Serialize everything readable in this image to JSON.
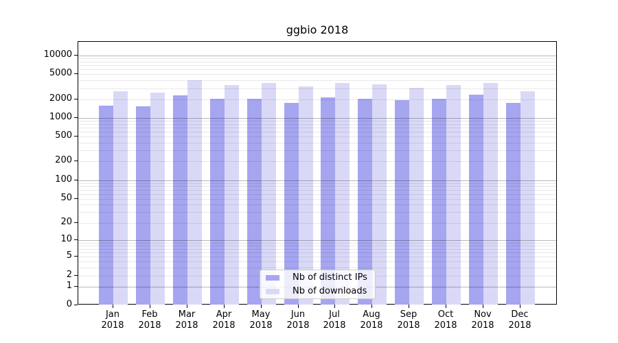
{
  "chart_data": {
    "type": "bar",
    "title": "ggbio 2018",
    "categories": [
      "Jan 2018",
      "Feb 2018",
      "Mar 2018",
      "Apr 2018",
      "May 2018",
      "Jun 2018",
      "Jul 2018",
      "Aug 2018",
      "Sep 2018",
      "Oct 2018",
      "Nov 2018",
      "Dec 2018"
    ],
    "x_tick_months": [
      "Jan",
      "Feb",
      "Mar",
      "Apr",
      "May",
      "Jun",
      "Jul",
      "Aug",
      "Sep",
      "Oct",
      "Nov",
      "Dec"
    ],
    "x_tick_year": "2018",
    "series": [
      {
        "name": "Nb of distinct IPs",
        "color": "#a5a5f0",
        "values": [
          1570,
          1530,
          2320,
          2020,
          2050,
          1730,
          2150,
          2050,
          1920,
          2020,
          2360,
          1750
        ]
      },
      {
        "name": "Nb of downloads",
        "color": "#d9d9f7",
        "values": [
          2680,
          2530,
          4020,
          3340,
          3610,
          3200,
          3660,
          3480,
          3070,
          3390,
          3610,
          2700
        ]
      }
    ],
    "xlabel": "",
    "ylabel": "",
    "y_scale": "log1p",
    "ylim": [
      0,
      16000
    ],
    "y_ticks": [
      {
        "value": 0,
        "label": "0"
      },
      {
        "value": 1,
        "label": "1"
      },
      {
        "value": 2,
        "label": "2"
      },
      {
        "value": 5,
        "label": "5"
      },
      {
        "value": 10,
        "label": "10"
      },
      {
        "value": 20,
        "label": "20"
      },
      {
        "value": 50,
        "label": "50"
      },
      {
        "value": 100,
        "label": "100"
      },
      {
        "value": 200,
        "label": "200"
      },
      {
        "value": 500,
        "label": "500"
      },
      {
        "value": 1000,
        "label": "1000"
      },
      {
        "value": 2000,
        "label": "2000"
      },
      {
        "value": 5000,
        "label": "5000"
      },
      {
        "value": 10000,
        "label": "10000"
      }
    ],
    "grid": "horizontal log major+minor",
    "legend_position": "lower center-left inside plot",
    "legend_entries": [
      "Nb of distinct IPs",
      "Nb of downloads"
    ]
  },
  "colors": {
    "bar_dark": "#a5a5f0",
    "bar_light": "#d9d9f7",
    "grid_major": "#b8b8b8",
    "grid_minor": "#e8e8e8",
    "frame": "#000000",
    "legend_border": "#cccccc"
  }
}
